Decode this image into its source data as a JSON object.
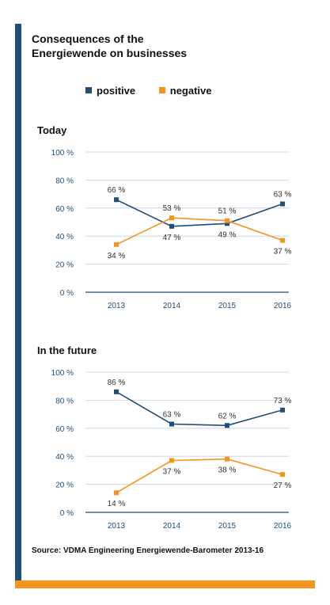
{
  "title": "Consequences of the Energiewende on businesses",
  "source": "Source: VDMA Engineering Energiewende-Barometer 2013-16",
  "colors": {
    "positive": "#1f4e79",
    "negative": "#f7941d",
    "accent_bar": "#1f4e79",
    "bottom_bar": "#f7941d"
  },
  "legend": {
    "positive": "positive",
    "negative": "negative"
  },
  "chart_data": [
    {
      "type": "line",
      "title": "Today",
      "categories": [
        "2013",
        "2014",
        "2015",
        "2016"
      ],
      "yticks": [
        "0 %",
        "20 %",
        "40 %",
        "60 %",
        "80 %",
        "100 %"
      ],
      "ylim": [
        0,
        100
      ],
      "grid": true,
      "legend_position": "top",
      "series": [
        {
          "name": "positive",
          "values": [
            66,
            47,
            49,
            63
          ],
          "labels": [
            "66 %",
            "47 %",
            "49 %",
            "63 %"
          ]
        },
        {
          "name": "negative",
          "values": [
            34,
            53,
            51,
            37
          ],
          "labels": [
            "34 %",
            "53 %",
            "51 %",
            "37 %"
          ]
        }
      ]
    },
    {
      "type": "line",
      "title": "In the future",
      "categories": [
        "2013",
        "2014",
        "2015",
        "2016"
      ],
      "yticks": [
        "0 %",
        "20 %",
        "40 %",
        "60 %",
        "80 %",
        "100 %"
      ],
      "ylim": [
        0,
        100
      ],
      "grid": true,
      "legend_position": "top",
      "series": [
        {
          "name": "positive",
          "values": [
            86,
            63,
            62,
            73
          ],
          "labels": [
            "86 %",
            "63 %",
            "62 %",
            "73 %"
          ]
        },
        {
          "name": "negative",
          "values": [
            14,
            37,
            38,
            27
          ],
          "labels": [
            "14 %",
            "37 %",
            "38 %",
            "27 %"
          ]
        }
      ]
    }
  ]
}
